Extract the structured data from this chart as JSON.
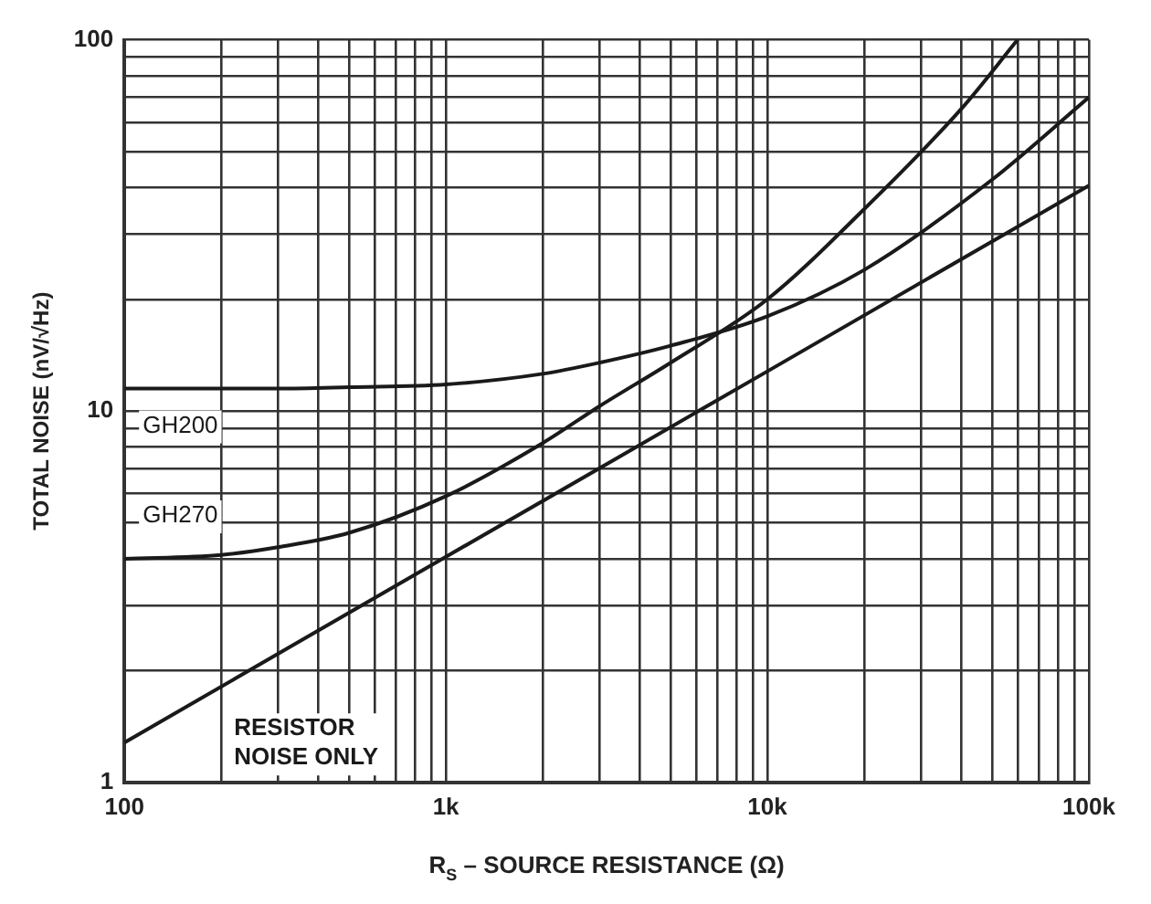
{
  "chart_data": {
    "type": "line",
    "xlabel": "R$_{S}$ – SOURCE RESISTANCE (Ω)",
    "ylabel": "TOTAL NOISE (nV/√Hz)",
    "log": "xy",
    "grid": true,
    "legend": false,
    "marker": "none",
    "line_style": "solid",
    "xlim": [
      100,
      100000
    ],
    "ylim": [
      1,
      100
    ],
    "xticks": [
      {
        "value": 100,
        "label": "100"
      },
      {
        "value": 200,
        "label": null
      },
      {
        "value": 300,
        "label": null
      },
      {
        "value": 400,
        "label": null
      },
      {
        "value": 500,
        "label": null
      },
      {
        "value": 600,
        "label": null
      },
      {
        "value": 700,
        "label": null
      },
      {
        "value": 800,
        "label": null
      },
      {
        "value": 900,
        "label": null
      },
      {
        "value": 1000,
        "label": "1k"
      },
      {
        "value": 2000,
        "label": null
      },
      {
        "value": 3000,
        "label": null
      },
      {
        "value": 4000,
        "label": null
      },
      {
        "value": 5000,
        "label": null
      },
      {
        "value": 6000,
        "label": null
      },
      {
        "value": 7000,
        "label": null
      },
      {
        "value": 8000,
        "label": null
      },
      {
        "value": 9000,
        "label": null
      },
      {
        "value": 10000,
        "label": "10k"
      },
      {
        "value": 20000,
        "label": null
      },
      {
        "value": 30000,
        "label": null
      },
      {
        "value": 40000,
        "label": null
      },
      {
        "value": 50000,
        "label": null
      },
      {
        "value": 60000,
        "label": null
      },
      {
        "value": 70000,
        "label": null
      },
      {
        "value": 80000,
        "label": null
      },
      {
        "value": 90000,
        "label": null
      },
      {
        "value": 100000,
        "label": "100k"
      }
    ],
    "yticks": [
      1,
      {
        "value": 2,
        "label": null
      },
      {
        "value": 3,
        "label": null
      },
      {
        "value": 4,
        "label": null
      },
      {
        "value": 5,
        "label": null
      },
      {
        "value": 6,
        "label": null
      },
      {
        "value": 7,
        "label": null
      },
      {
        "value": 8,
        "label": null
      },
      {
        "value": 9,
        "label": null
      },
      10,
      {
        "value": 20,
        "label": null
      },
      {
        "value": 30,
        "label": null
      },
      {
        "value": 40,
        "label": null
      },
      {
        "value": 50,
        "label": null
      },
      {
        "value": 60,
        "label": null
      },
      {
        "value": 70,
        "label": null
      },
      {
        "value": 80,
        "label": null
      },
      {
        "value": 90,
        "label": null
      },
      100
    ],
    "series": [
      {
        "name": "GH200",
        "color": "#1a1a1a",
        "x": [
          100,
          200,
          300,
          500,
          1000,
          2000,
          3000,
          5000,
          10000,
          20000,
          50000,
          100000
        ],
        "values": [
          11.5,
          11.5,
          11.5,
          11.6,
          11.8,
          12.6,
          13.5,
          15,
          18,
          24,
          42,
          70
        ]
      },
      {
        "name": "GH270",
        "color": "#1a1a1a",
        "x": [
          100,
          200,
          300,
          500,
          1000,
          2000,
          3000,
          5000,
          10000,
          20000,
          40000,
          60000
        ],
        "values": [
          4,
          4.1,
          4.3,
          4.7,
          5.9,
          8.2,
          10.3,
          13.5,
          20,
          35,
          65,
          100
        ]
      },
      {
        "name": "RESISTOR NOISE ONLY",
        "color": "#1a1a1a",
        "x": [
          100,
          1000,
          10000,
          100000
        ],
        "values": [
          1.28,
          4.05,
          12.8,
          40.5
        ]
      }
    ]
  }
}
